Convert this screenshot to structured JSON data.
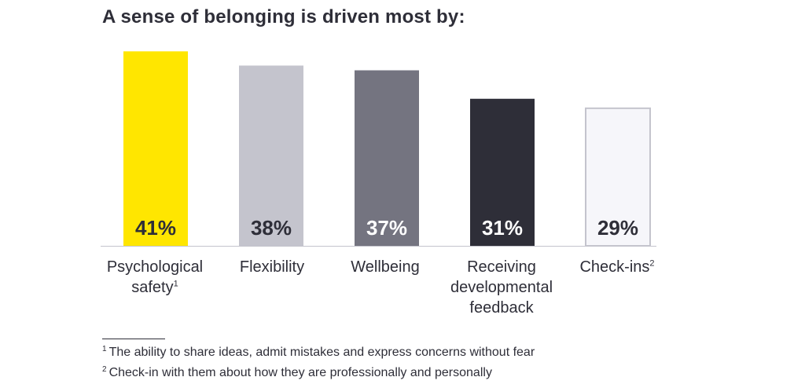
{
  "chart_data": {
    "type": "bar",
    "title": "A sense of belonging is driven most by:",
    "categories": [
      "Psychological safety",
      "Flexibility",
      "Wellbeing",
      "Receiving developmental feedback",
      "Check-ins"
    ],
    "values": [
      41,
      38,
      37,
      31,
      29
    ],
    "value_labels": [
      "41%",
      "38%",
      "37%",
      "31%",
      "29%"
    ],
    "colors": [
      "#ffe600",
      "#c4c4cd",
      "#747480",
      "#2e2e38",
      "#f6f6fa"
    ],
    "value_text_colors": [
      "#2e2e38",
      "#2e2e38",
      "#ffffff",
      "#ffffff",
      "#2e2e38"
    ],
    "xlabel": "",
    "ylabel": "",
    "ylim": [
      0,
      45
    ],
    "grid": false,
    "legend": "none"
  },
  "labels": {
    "cat0_line1": "Psychological",
    "cat0_line2": "safety",
    "cat0_sup": "1",
    "cat1": "Flexibility",
    "cat2": "Wellbeing",
    "cat3_line1": "Receiving",
    "cat3_line2": "developmental",
    "cat3_line3": "feedback",
    "cat4": "Check-ins",
    "cat4_sup": "2"
  },
  "footnotes": [
    {
      "marker": "1",
      "text": "The ability to share ideas, admit mistakes and express concerns without fear"
    },
    {
      "marker": "2",
      "text": "Check-in with them about how they are professionally and personally"
    }
  ]
}
